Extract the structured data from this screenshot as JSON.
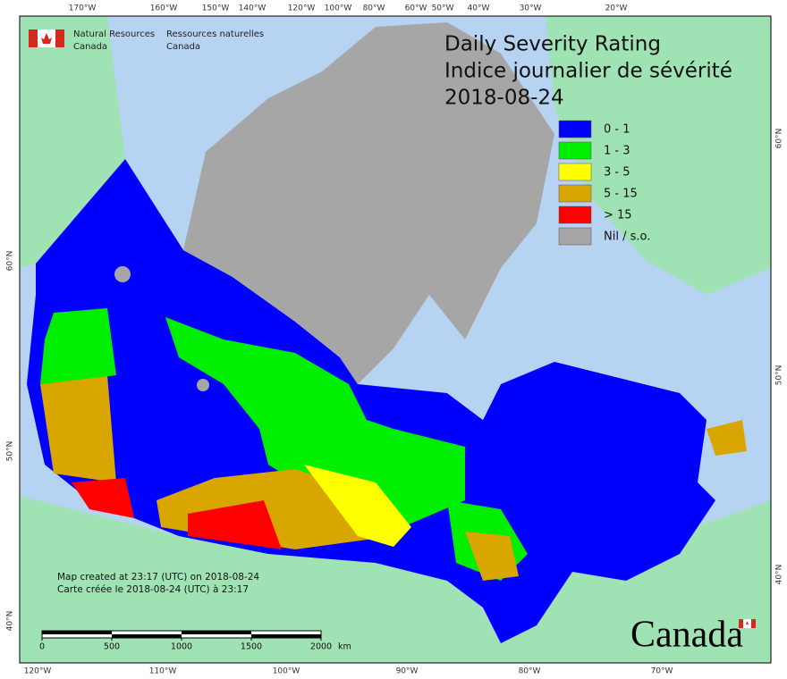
{
  "header": {
    "agency_en": [
      "Natural Resources",
      "Canada"
    ],
    "agency_fr": [
      "Ressources naturelles",
      "Canada"
    ]
  },
  "title": [
    "Daily Severity Rating",
    "Indice journalier de sévérité",
    "2018-08-24"
  ],
  "legend": [
    {
      "label": "0 - 1",
      "color": "#0000ff"
    },
    {
      "label": "1 - 3",
      "color": "#00ee00"
    },
    {
      "label": "3 - 5",
      "color": "#ffff00"
    },
    {
      "label": "5 - 15",
      "color": "#d9a600"
    },
    {
      "label": "> 15",
      "color": "#ff0000"
    },
    {
      "label": "Nil / s.o.",
      "color": "#a6a6a6"
    }
  ],
  "graticule": {
    "top": [
      "170°W",
      "160°W",
      "150°W",
      "140°W",
      "120°W",
      "100°W",
      "80°W",
      "60°W",
      "50°W",
      "40°W",
      "30°W",
      "20°W"
    ],
    "bottom": [
      "120°W",
      "110°W",
      "100°W",
      "90°W",
      "80°W",
      "70°W"
    ],
    "left": [
      "60°N",
      "50°N",
      "40°N"
    ],
    "right": [
      "60°N",
      "50°N",
      "40°N"
    ]
  },
  "notes": [
    "Map created at 23:17 (UTC) on 2018-08-24",
    "Carte créée le 2018-08-24 (UTC) à 23:17"
  ],
  "scale": {
    "ticks": [
      0,
      500,
      1000,
      1500,
      2000
    ],
    "unit": "km"
  },
  "wordmark": "Canada"
}
